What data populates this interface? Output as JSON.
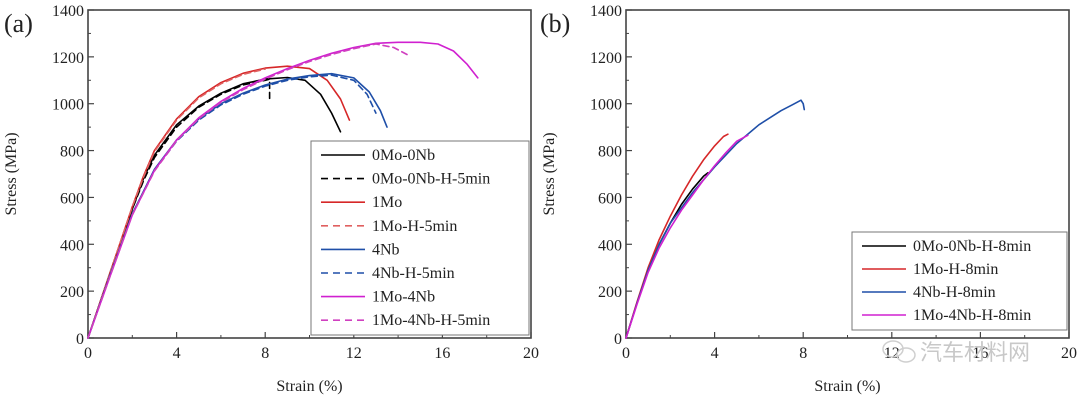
{
  "chart_data": [
    {
      "type": "line",
      "panel_label": "(a)",
      "xlabel": "Strain (%)",
      "ylabel": "Stress (MPa)",
      "xlim": [
        0,
        20
      ],
      "ylim": [
        0,
        1400
      ],
      "xticks": [
        0,
        4,
        8,
        12,
        16,
        20
      ],
      "yticks": [
        0,
        200,
        400,
        600,
        800,
        1000,
        1200,
        1400
      ],
      "grid": false,
      "legend_position": "bottom-right",
      "series": [
        {
          "name": "0Mo-0Nb",
          "color": "#000000",
          "dash": "solid",
          "x": [
            0,
            1,
            2,
            2.5,
            3,
            4,
            5,
            6,
            7,
            8,
            9,
            9.8,
            10.5,
            11,
            11.4
          ],
          "y": [
            0,
            280,
            550,
            680,
            780,
            910,
            990,
            1045,
            1085,
            1105,
            1112,
            1100,
            1040,
            960,
            880
          ]
        },
        {
          "name": "0Mo-0Nb-H-5min",
          "color": "#000000",
          "dash": "dashed",
          "x": [
            0,
            1,
            2,
            2.5,
            3,
            4,
            5,
            6,
            7,
            8,
            8.2,
            8.2
          ],
          "y": [
            0,
            280,
            550,
            670,
            770,
            900,
            985,
            1040,
            1080,
            1100,
            1105,
            1020
          ]
        },
        {
          "name": "1Mo",
          "color": "#d62728",
          "dash": "solid",
          "x": [
            0,
            1,
            2,
            2.5,
            3,
            4,
            5,
            6,
            7,
            8,
            9,
            10,
            10.8,
            11.4,
            11.8
          ],
          "y": [
            0,
            280,
            560,
            690,
            800,
            935,
            1030,
            1090,
            1130,
            1152,
            1160,
            1150,
            1100,
            1020,
            930
          ]
        },
        {
          "name": "1Mo-H-5min",
          "color": "#e06060",
          "dash": "dashed",
          "x": [
            0,
            1,
            2,
            2.5,
            3,
            4,
            5,
            6,
            7,
            8
          ],
          "y": [
            0,
            280,
            560,
            685,
            795,
            930,
            1025,
            1085,
            1125,
            1148
          ]
        },
        {
          "name": "4Nb",
          "color": "#1f4fa8",
          "dash": "solid",
          "x": [
            0,
            1,
            2,
            3,
            4,
            5,
            6,
            7,
            8,
            9,
            10,
            11,
            12,
            12.7,
            13.2,
            13.5
          ],
          "y": [
            0,
            270,
            530,
            720,
            845,
            935,
            1000,
            1045,
            1080,
            1105,
            1120,
            1128,
            1110,
            1050,
            970,
            900
          ]
        },
        {
          "name": "4Nb-H-5min",
          "color": "#1f4fa8",
          "dash": "dashed",
          "x": [
            0,
            1,
            2,
            3,
            4,
            5,
            6,
            7,
            8,
            9,
            10,
            11,
            12,
            12.6,
            13.0
          ],
          "y": [
            0,
            270,
            528,
            715,
            840,
            930,
            995,
            1040,
            1075,
            1100,
            1115,
            1122,
            1100,
            1040,
            960
          ]
        },
        {
          "name": "1Mo-4Nb",
          "color": "#d020d0",
          "dash": "solid",
          "x": [
            0,
            1,
            2,
            3,
            4,
            5,
            6,
            7,
            8,
            9,
            10,
            11,
            12,
            13,
            14,
            15,
            15.8,
            16.5,
            17.1,
            17.6
          ],
          "y": [
            0,
            265,
            525,
            715,
            845,
            940,
            1010,
            1065,
            1110,
            1150,
            1185,
            1215,
            1240,
            1258,
            1262,
            1262,
            1255,
            1225,
            1170,
            1110
          ]
        },
        {
          "name": "1Mo-4Nb-H-5min",
          "color": "#d040c0",
          "dash": "dashed",
          "x": [
            0,
            1,
            2,
            3,
            4,
            5,
            6,
            7,
            8,
            9,
            10,
            11,
            12,
            13,
            13.8,
            14.4
          ],
          "y": [
            0,
            265,
            525,
            712,
            842,
            936,
            1005,
            1060,
            1105,
            1145,
            1180,
            1210,
            1235,
            1255,
            1240,
            1210
          ]
        }
      ]
    },
    {
      "type": "line",
      "panel_label": "(b)",
      "xlabel": "Strain (%)",
      "ylabel": "Stress (MPa)",
      "xlim": [
        0,
        20
      ],
      "ylim": [
        0,
        1400
      ],
      "xticks": [
        0,
        4,
        8,
        12,
        16,
        20
      ],
      "yticks": [
        0,
        200,
        400,
        600,
        800,
        1000,
        1200,
        1400
      ],
      "grid": false,
      "legend_position": "bottom-right",
      "series": [
        {
          "name": "0Mo-0Nb-H-8min",
          "color": "#000000",
          "dash": "solid",
          "x": [
            0,
            0.5,
            1,
            1.5,
            2,
            2.5,
            3,
            3.5,
            3.7
          ],
          "y": [
            0,
            150,
            290,
            400,
            490,
            570,
            635,
            690,
            705
          ]
        },
        {
          "name": "1Mo-H-8min",
          "color": "#d62728",
          "dash": "solid",
          "x": [
            0,
            0.5,
            1,
            1.5,
            2,
            2.5,
            3,
            3.5,
            4,
            4.4,
            4.6
          ],
          "y": [
            0,
            155,
            300,
            420,
            520,
            610,
            690,
            760,
            820,
            860,
            870
          ]
        },
        {
          "name": "4Nb-H-8min",
          "color": "#1f4fa8",
          "dash": "solid",
          "x": [
            0,
            0.5,
            1,
            1.5,
            2,
            3,
            4,
            5,
            6,
            7,
            7.5,
            7.9,
            8.0,
            8.05
          ],
          "y": [
            0,
            150,
            290,
            400,
            490,
            620,
            730,
            830,
            910,
            970,
            995,
            1015,
            1000,
            975
          ]
        },
        {
          "name": "1Mo-4Nb-H-8min",
          "color": "#d020d0",
          "dash": "solid",
          "x": [
            0,
            0.5,
            1,
            1.5,
            2,
            2.5,
            3,
            3.5,
            4,
            4.5,
            5,
            5.5
          ],
          "y": [
            0,
            145,
            280,
            385,
            470,
            545,
            610,
            675,
            735,
            790,
            840,
            865
          ]
        }
      ]
    }
  ],
  "watermark": "汽车材料网"
}
